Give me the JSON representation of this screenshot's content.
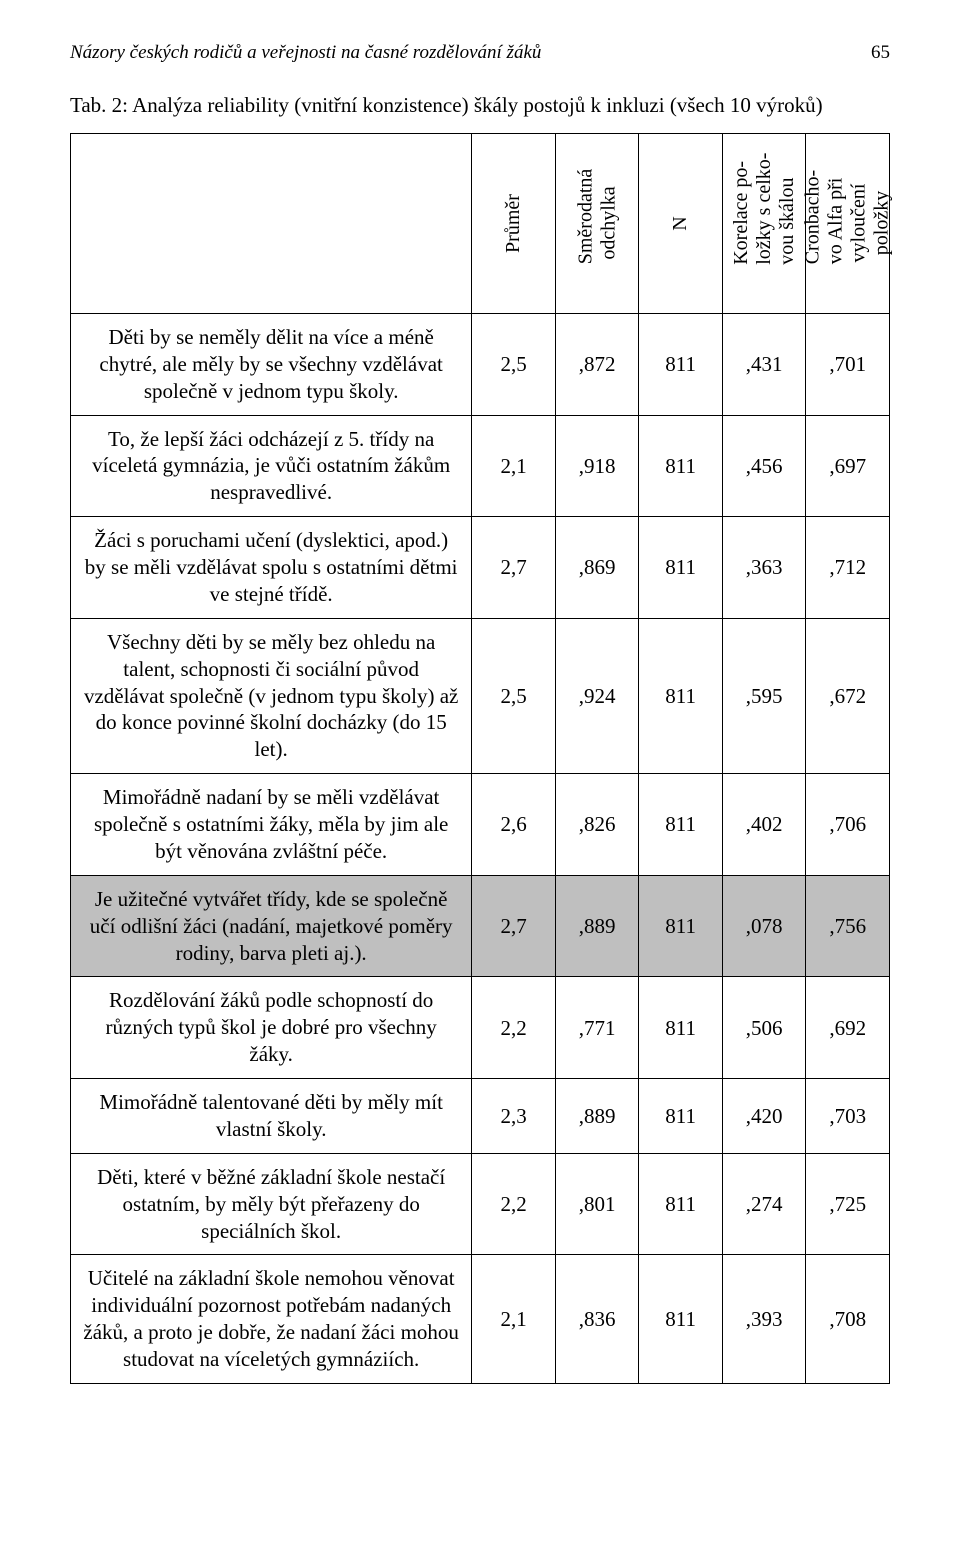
{
  "header": {
    "running_title": "Názory českých rodičů a veřejnosti na časné rozdělování žáků",
    "page_number": "65"
  },
  "caption": "Tab. 2: Analýza reliability (vnitřní konzistence) škály postojů k inkluzi (všech 10 výroků)",
  "columns": {
    "c1": "Průměr",
    "c2": "Směrodatná<br>odchylka",
    "c3": "N",
    "c4": "Korelace po-<br>ložky s celko-<br>vou škálou",
    "c5": "Cronbacho-<br>vo Alfa při<br>vyloučení<br>položky"
  },
  "rows": [
    {
      "item": "Děti by se neměly dělit na více a méně chytré, ale měly by se všechny vzdělávat společně v jednom typu školy.",
      "mean": "2,5",
      "sd": ",872",
      "n": "811",
      "corr": ",431",
      "alpha": ",701",
      "highlight": false
    },
    {
      "item": "To, že lepší žáci odcházejí z 5. třídy na víceletá gymnázia, je vůči ostatním žákům nespravedlivé.",
      "mean": "2,1",
      "sd": ",918",
      "n": "811",
      "corr": ",456",
      "alpha": ",697",
      "highlight": false
    },
    {
      "item": "Žáci s poruchami učení (dyslektici, apod.) by se měli vzdělávat spolu s ostatními dětmi ve stejné třídě.",
      "mean": "2,7",
      "sd": ",869",
      "n": "811",
      "corr": ",363",
      "alpha": ",712",
      "highlight": false
    },
    {
      "item": "Všechny děti by se měly bez ohledu na talent, schopnosti či sociální původ vzdělávat společně (v jednom typu školy) až do konce povinné školní docházky (do 15 let).",
      "mean": "2,5",
      "sd": ",924",
      "n": "811",
      "corr": ",595",
      "alpha": ",672",
      "highlight": false
    },
    {
      "item": "Mimořádně nadaní by se měli vzdělávat společně s ostatními žáky, měla by jim ale být věnována zvláštní péče.",
      "mean": "2,6",
      "sd": ",826",
      "n": "811",
      "corr": ",402",
      "alpha": ",706",
      "highlight": false
    },
    {
      "item": "Je užitečné vytvářet třídy, kde se společně učí odlišní žáci (nadání, majetkové poměry rodiny, barva pleti aj.).",
      "mean": "2,7",
      "sd": ",889",
      "n": "811",
      "corr": ",078",
      "alpha": ",756",
      "highlight": true
    },
    {
      "item": "Rozdělování žáků podle schopností do různých typů škol je dobré pro všechny žáky.",
      "mean": "2,2",
      "sd": ",771",
      "n": "811",
      "corr": ",506",
      "alpha": ",692",
      "highlight": false
    },
    {
      "item": "Mimořádně talentované děti by měly mít vlastní školy.",
      "mean": "2,3",
      "sd": ",889",
      "n": "811",
      "corr": ",420",
      "alpha": ",703",
      "highlight": false
    },
    {
      "item": "Děti, které v běžné základní škole nestačí ostatním, by měly být přeřazeny do speciálních škol.",
      "mean": "2,2",
      "sd": ",801",
      "n": "811",
      "corr": ",274",
      "alpha": ",725",
      "highlight": false
    },
    {
      "item": "Učitelé na základní škole nemohou věnovat individuální pozornost potřebám nadaných žáků, a proto je dobře, že nadaní žáci mohou studovat na víceletých gymnáziích.",
      "mean": "2,1",
      "sd": ",836",
      "n": "811",
      "corr": ",393",
      "alpha": ",708",
      "highlight": false
    }
  ],
  "style": {
    "highlight_bg": "#bfbfbf",
    "border_color": "#000000",
    "page_bg": "#ffffff",
    "font_family": "serif"
  }
}
